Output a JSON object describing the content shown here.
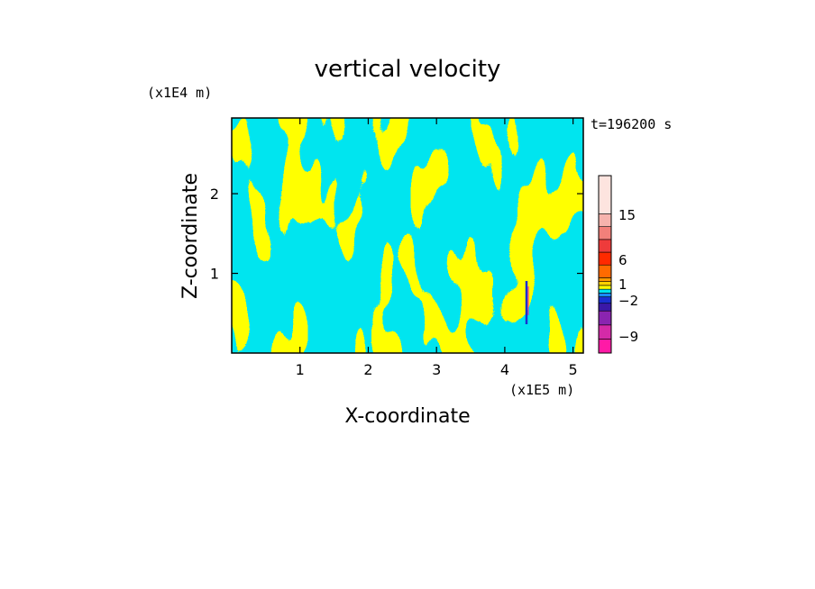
{
  "chart_data": {
    "type": "heatmap",
    "title": "vertical velocity",
    "xlabel": "X-coordinate",
    "ylabel": "Z-coordinate",
    "x_unit": "(x1E5 m)",
    "y_unit": "(x1E4 m)",
    "time_label": "t=196200 s",
    "xlim": [
      0,
      5.15
    ],
    "ylim": [
      0,
      2.95
    ],
    "x_ticks": [
      "1",
      "2",
      "3",
      "4",
      "5"
    ],
    "x_tick_values": [
      1,
      2,
      3,
      4,
      5
    ],
    "y_ticks": [
      "1",
      "2"
    ],
    "y_tick_values": [
      1,
      2
    ],
    "dominant_field_colors": {
      "negative": "#00e5ef",
      "positive": "#ffff00"
    },
    "colorbar": {
      "levels": [
        "-9",
        "-2",
        "1",
        "6",
        "15"
      ],
      "level_values": [
        -9,
        -2,
        1,
        6,
        15
      ],
      "colors": [
        "#ff1aa6",
        "#d42aa8",
        "#8a24b0",
        "#3a18a8",
        "#1a2fd1",
        "#1a8bff",
        "#00e5ef",
        "#ffff00",
        "#ffd200",
        "#ff9a00",
        "#ff6a00",
        "#ff2a00",
        "#ee3b3b",
        "#f2807a",
        "#f6b3ad",
        "#fde4df"
      ]
    }
  }
}
